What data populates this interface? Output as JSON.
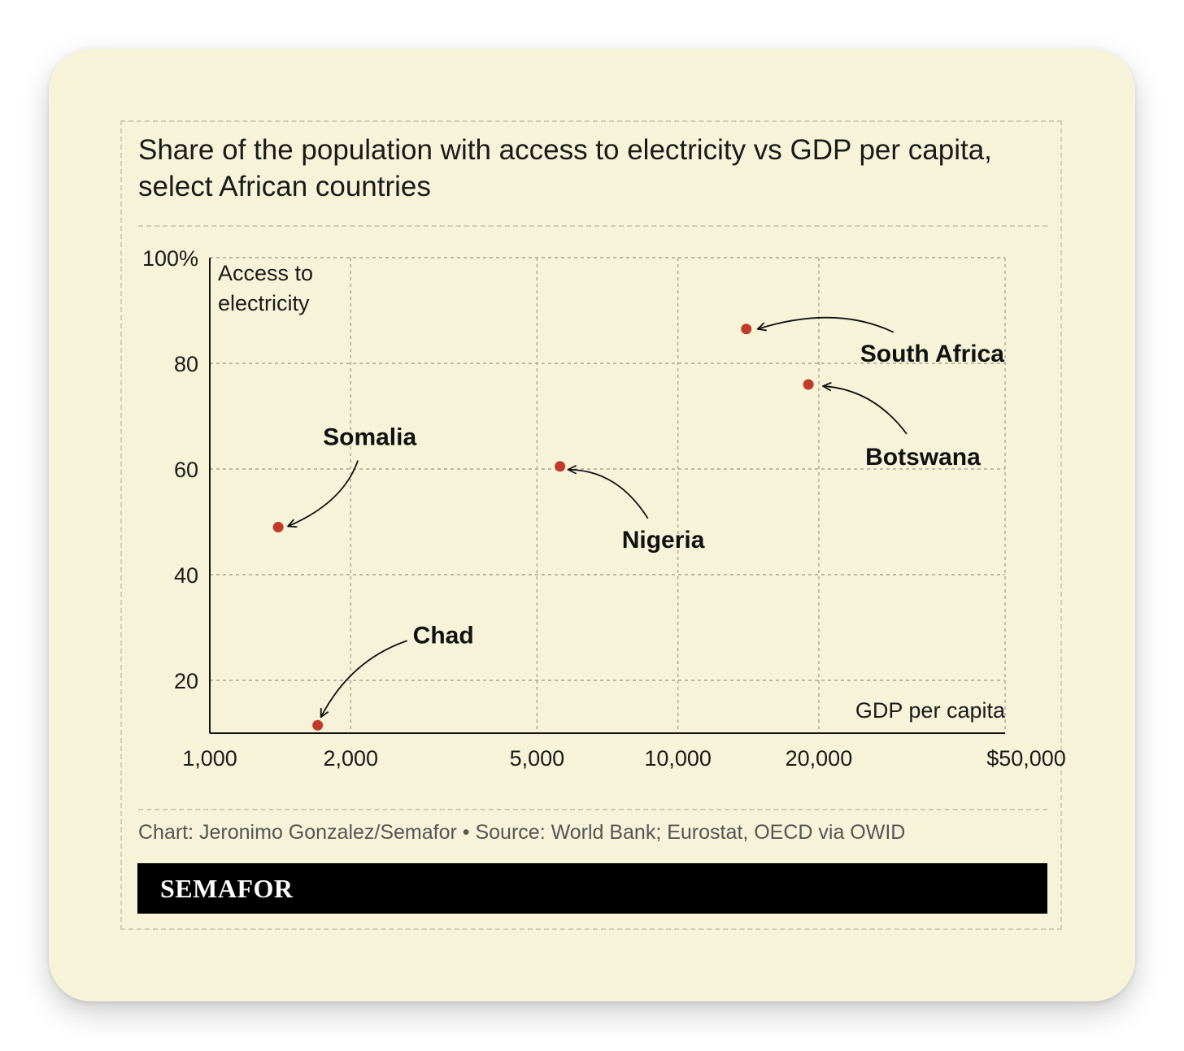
{
  "chart_data": {
    "type": "scatter",
    "title": "Share of the population with access to electricity vs GDP per capita, select African countries",
    "xlabel": "GDP per capita",
    "ylabel": "Access to electricity",
    "x_scale": "log",
    "xlim": [
      1000,
      50000
    ],
    "ylim": [
      10,
      100
    ],
    "x_ticks": [
      {
        "value": 1000,
        "label": "1,000"
      },
      {
        "value": 2000,
        "label": "2,000"
      },
      {
        "value": 5000,
        "label": "5,000"
      },
      {
        "value": 10000,
        "label": "10,000"
      },
      {
        "value": 20000,
        "label": "20,000"
      },
      {
        "value": 50000,
        "label": "$50,000"
      }
    ],
    "y_ticks": [
      {
        "value": 20,
        "label": "20"
      },
      {
        "value": 40,
        "label": "40"
      },
      {
        "value": 60,
        "label": "60"
      },
      {
        "value": 80,
        "label": "80"
      },
      {
        "value": 100,
        "label": "100%"
      }
    ],
    "grid": true,
    "point_color": "#c0392b",
    "points": [
      {
        "name": "Somalia",
        "x": 1400,
        "y": 49,
        "label_pos": "above-right"
      },
      {
        "name": "Chad",
        "x": 1700,
        "y": 11.5,
        "label_pos": "above-right"
      },
      {
        "name": "Nigeria",
        "x": 5600,
        "y": 60.5,
        "label_pos": "below-right"
      },
      {
        "name": "South Africa",
        "x": 14000,
        "y": 86.5,
        "label_pos": "right"
      },
      {
        "name": "Botswana",
        "x": 19000,
        "y": 76,
        "label_pos": "below-right"
      }
    ]
  },
  "footer": {
    "credit": "Chart: Jeronimo Gonzalez/Semafor • Source: World Bank; Eurostat, OECD via OWID",
    "brand": "SEMAFOR"
  }
}
